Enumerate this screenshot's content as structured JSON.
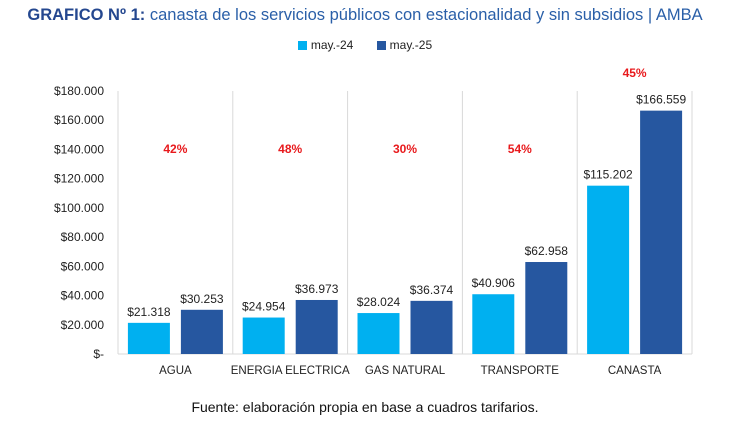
{
  "title": {
    "prefix": "GRAFICO Nº 1:",
    "text": " canasta de los servicios públicos con estacionalidad y sin subsidios | AMBA"
  },
  "footer": "Fuente: elaboración propia en base a cuadros tarifarios.",
  "colors": {
    "may24": "#00b0f0",
    "may25": "#2657a0",
    "pct": "#e8191c"
  },
  "chart_data": {
    "type": "bar",
    "title": "GRAFICO Nº 1: canasta de los servicios públicos con estacionalidad y sin subsidios | AMBA",
    "categories": [
      "AGUA",
      "ENERGIA ELECTRICA",
      "GAS NATURAL",
      "TRANSPORTE",
      "CANASTA"
    ],
    "series": [
      {
        "name": "may.-24",
        "values": [
          21318,
          24954,
          28024,
          40906,
          115202
        ],
        "labels": [
          "$21.318",
          "$24.954",
          "$28.024",
          "$40.906",
          "$115.202"
        ]
      },
      {
        "name": "may.-25",
        "values": [
          30253,
          36973,
          36374,
          62958,
          166559
        ],
        "labels": [
          "$30.253",
          "$36.973",
          "$36.374",
          "$62.958",
          "$166.559"
        ]
      }
    ],
    "annotations": [
      "42%",
      "48%",
      "30%",
      "54%",
      "45%"
    ],
    "ylim": [
      0,
      180000
    ],
    "yticks": [
      0,
      20000,
      40000,
      60000,
      80000,
      100000,
      120000,
      140000,
      160000,
      180000
    ],
    "ytick_labels": [
      "$-",
      "$20.000",
      "$40.000",
      "$60.000",
      "$80.000",
      "$100.000",
      "$120.000",
      "$140.000",
      "$160.000",
      "$180.000"
    ],
    "xlabel": "",
    "ylabel": "",
    "grid": false,
    "legend": "top-center"
  }
}
